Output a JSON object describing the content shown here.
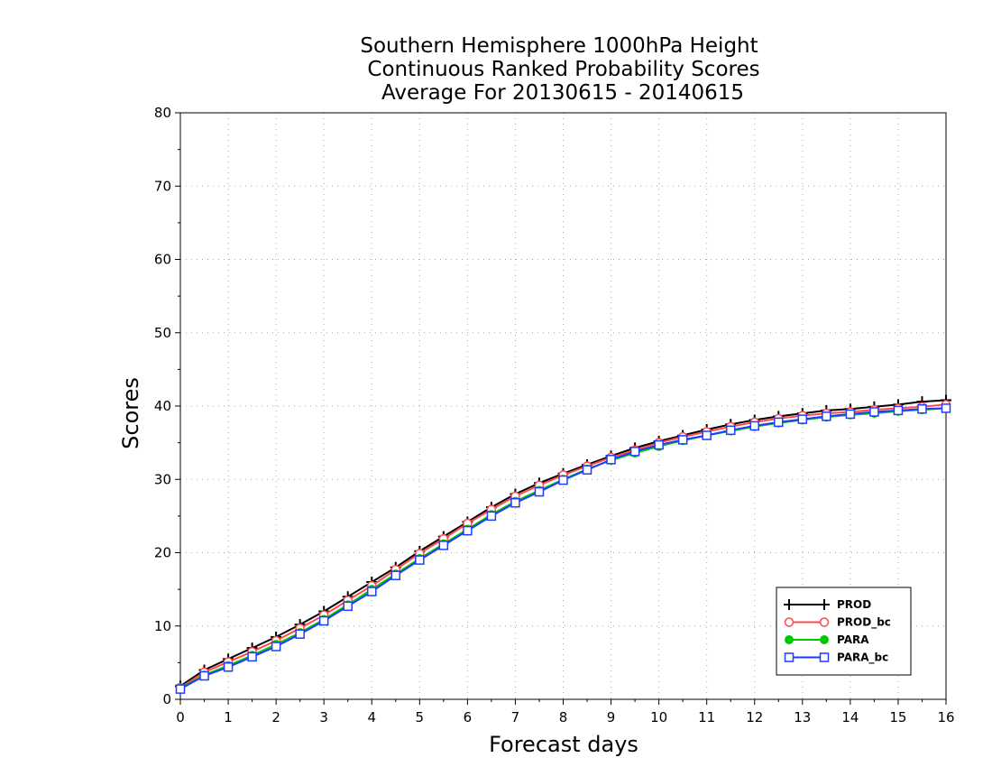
{
  "chart_data": {
    "type": "line",
    "title": [
      "Southern Hemisphere 1000hPa Height",
      "Continuous Ranked Probability Scores",
      "Average For 20130615 - 20140615"
    ],
    "xlabel": "Forecast days",
    "ylabel": "Scores",
    "xlim": [
      0,
      16
    ],
    "ylim": [
      0,
      80
    ],
    "xticks": [
      "0",
      "1",
      "2",
      "3",
      "4",
      "5",
      "6",
      "7",
      "8",
      "9",
      "10",
      "11",
      "12",
      "13",
      "14",
      "15",
      "16"
    ],
    "yticks": [
      "0",
      "10",
      "20",
      "30",
      "40",
      "50",
      "60",
      "70",
      "80"
    ],
    "grid": true,
    "legend_position": "bottom-right",
    "x": [
      0,
      0.5,
      1,
      1.5,
      2,
      2.5,
      3,
      3.5,
      4,
      4.5,
      5,
      5.5,
      6,
      6.5,
      7,
      7.5,
      8,
      8.5,
      9,
      9.5,
      10,
      10.5,
      11,
      11.5,
      12,
      12.5,
      13,
      13.5,
      14,
      14.5,
      15,
      15.5,
      16
    ],
    "series": [
      {
        "name": "PROD",
        "color": "#000000",
        "marker": "plus",
        "values": [
          1.8,
          4.0,
          5.5,
          7.0,
          8.5,
          10.2,
          12.0,
          14.0,
          16.0,
          18.0,
          20.2,
          22.2,
          24.2,
          26.2,
          28.0,
          29.5,
          30.8,
          32.0,
          33.2,
          34.3,
          35.2,
          36.0,
          36.8,
          37.5,
          38.1,
          38.6,
          39.0,
          39.4,
          39.6,
          39.9,
          40.2,
          40.6,
          40.8
        ]
      },
      {
        "name": "PROD_bc",
        "color": "#ff4a4a",
        "marker": "circle",
        "values": [
          1.6,
          3.7,
          5.1,
          6.5,
          8.0,
          9.7,
          11.5,
          13.5,
          15.5,
          17.7,
          19.9,
          21.9,
          24.0,
          25.9,
          27.7,
          29.2,
          30.6,
          31.8,
          33.0,
          34.0,
          35.0,
          35.8,
          36.5,
          37.2,
          37.8,
          38.3,
          38.7,
          39.0,
          39.2,
          39.5,
          39.7,
          39.9,
          40.2
        ]
      },
      {
        "name": "PARA",
        "color": "#00c800",
        "marker": "dot",
        "values": [
          1.5,
          3.3,
          4.6,
          6.0,
          7.5,
          9.1,
          10.9,
          12.9,
          15.0,
          17.1,
          19.2,
          21.2,
          23.2,
          25.2,
          27.0,
          28.5,
          30.0,
          31.4,
          32.6,
          33.6,
          34.5,
          35.3,
          36.0,
          36.6,
          37.2,
          37.7,
          38.1,
          38.5,
          38.8,
          39.0,
          39.3,
          39.5,
          39.7
        ]
      },
      {
        "name": "PARA_bc",
        "color": "#1e3cff",
        "marker": "square",
        "values": [
          1.4,
          3.2,
          4.4,
          5.8,
          7.2,
          8.9,
          10.7,
          12.7,
          14.7,
          16.9,
          19.0,
          21.0,
          23.0,
          25.0,
          26.8,
          28.3,
          29.9,
          31.3,
          32.7,
          33.8,
          34.7,
          35.4,
          36.0,
          36.7,
          37.3,
          37.8,
          38.2,
          38.6,
          38.9,
          39.2,
          39.4,
          39.6,
          39.7
        ]
      }
    ]
  }
}
